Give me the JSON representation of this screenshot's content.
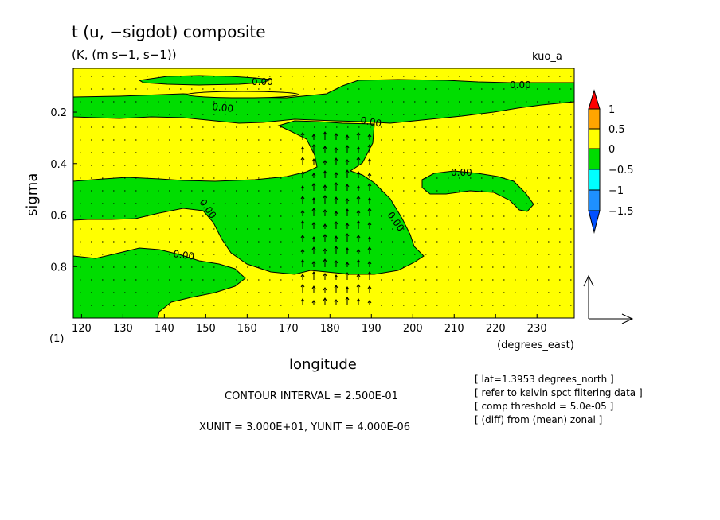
{
  "chart_data": {
    "type": "contour",
    "title": "t (u, −sigdot) composite",
    "subtitle": "(K, (m s−1, s−1))",
    "tag": "kuo_a",
    "xlabel": "longitude",
    "xunit_label": "(degrees_east)",
    "ylabel": "sigma",
    "yunit_label": "(1)",
    "xlim": [
      118,
      239
    ],
    "ylim": [
      0.03,
      1.0
    ],
    "y_inverted": true,
    "x_ticks": [
      "120",
      "130",
      "140",
      "150",
      "160",
      "170",
      "180",
      "190",
      "200",
      "210",
      "220",
      "230"
    ],
    "y_ticks": [
      "0.2",
      "0.4",
      "0.6",
      "0.8"
    ],
    "x_tick_values": [
      120,
      130,
      140,
      150,
      160,
      170,
      180,
      190,
      200,
      210,
      220,
      230
    ],
    "y_tick_values": [
      0.2,
      0.4,
      0.6,
      0.8
    ],
    "colorbar": {
      "labels": [
        "1",
        "0.5",
        "0",
        "−0.5",
        "−1",
        "−1.5"
      ],
      "colors": [
        "#ff0000",
        "#ffa500",
        "#ffff00",
        "#00dd00",
        "#00ffff",
        "#1e90ff",
        "#0050ff"
      ]
    },
    "contour_labels": [
      "0.00",
      "0.00",
      "0.00",
      "0.00",
      "0.00",
      "0.00",
      "0.00",
      "0.00"
    ],
    "contour_interval": "CONTOUR INTERVAL = 2.500E-01",
    "units": "XUNIT = 3.000E+01, YUNIT = 4.000E-06",
    "info": [
      "[ lat=1.3953 degrees_north ]",
      "[ refer to kelvin spct filtering data ]",
      "[ comp threshold = 5.0e-05 ]",
      "[ (diff) from (mean) zonal ]"
    ],
    "colors": {
      "positive": "#ffff00",
      "negative": "#00dd00"
    }
  }
}
